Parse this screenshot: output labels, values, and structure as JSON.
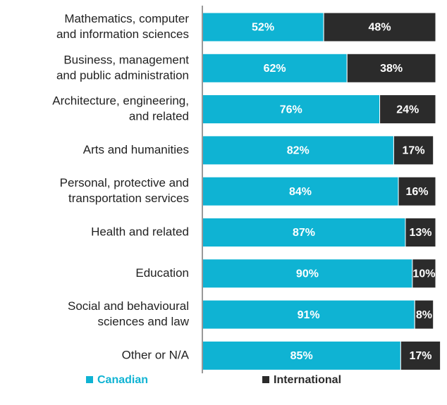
{
  "chart_data": {
    "type": "stacked-bar",
    "orientation": "horizontal",
    "categories": [
      [
        "Mathematics, computer",
        "and information sciences"
      ],
      [
        "Business, management",
        "and public administration"
      ],
      [
        "Architecture, engineering,",
        "and related"
      ],
      [
        "Arts and humanities"
      ],
      [
        "Personal, protective and",
        "transportation services"
      ],
      [
        "Health and related"
      ],
      [
        "Education"
      ],
      [
        "Social and behavioural",
        "sciences and law"
      ],
      [
        "Other or N/A"
      ]
    ],
    "series": [
      {
        "name": "Canadian",
        "color": "#0fb3d3",
        "values": [
          52,
          62,
          76,
          82,
          84,
          87,
          90,
          91,
          85
        ],
        "value_labels": [
          "52%",
          "62%",
          "76%",
          "82%",
          "84%",
          "87%",
          "90%",
          "91%",
          "85%"
        ]
      },
      {
        "name": "International",
        "color": "#2b2b2b",
        "values": [
          48,
          38,
          24,
          17,
          16,
          13,
          10,
          8,
          17
        ],
        "value_labels": [
          "48%",
          "38%",
          "24%",
          "17%",
          "16%",
          "13%",
          "10%",
          "8%",
          "17%"
        ]
      }
    ],
    "legend": "bottom"
  }
}
